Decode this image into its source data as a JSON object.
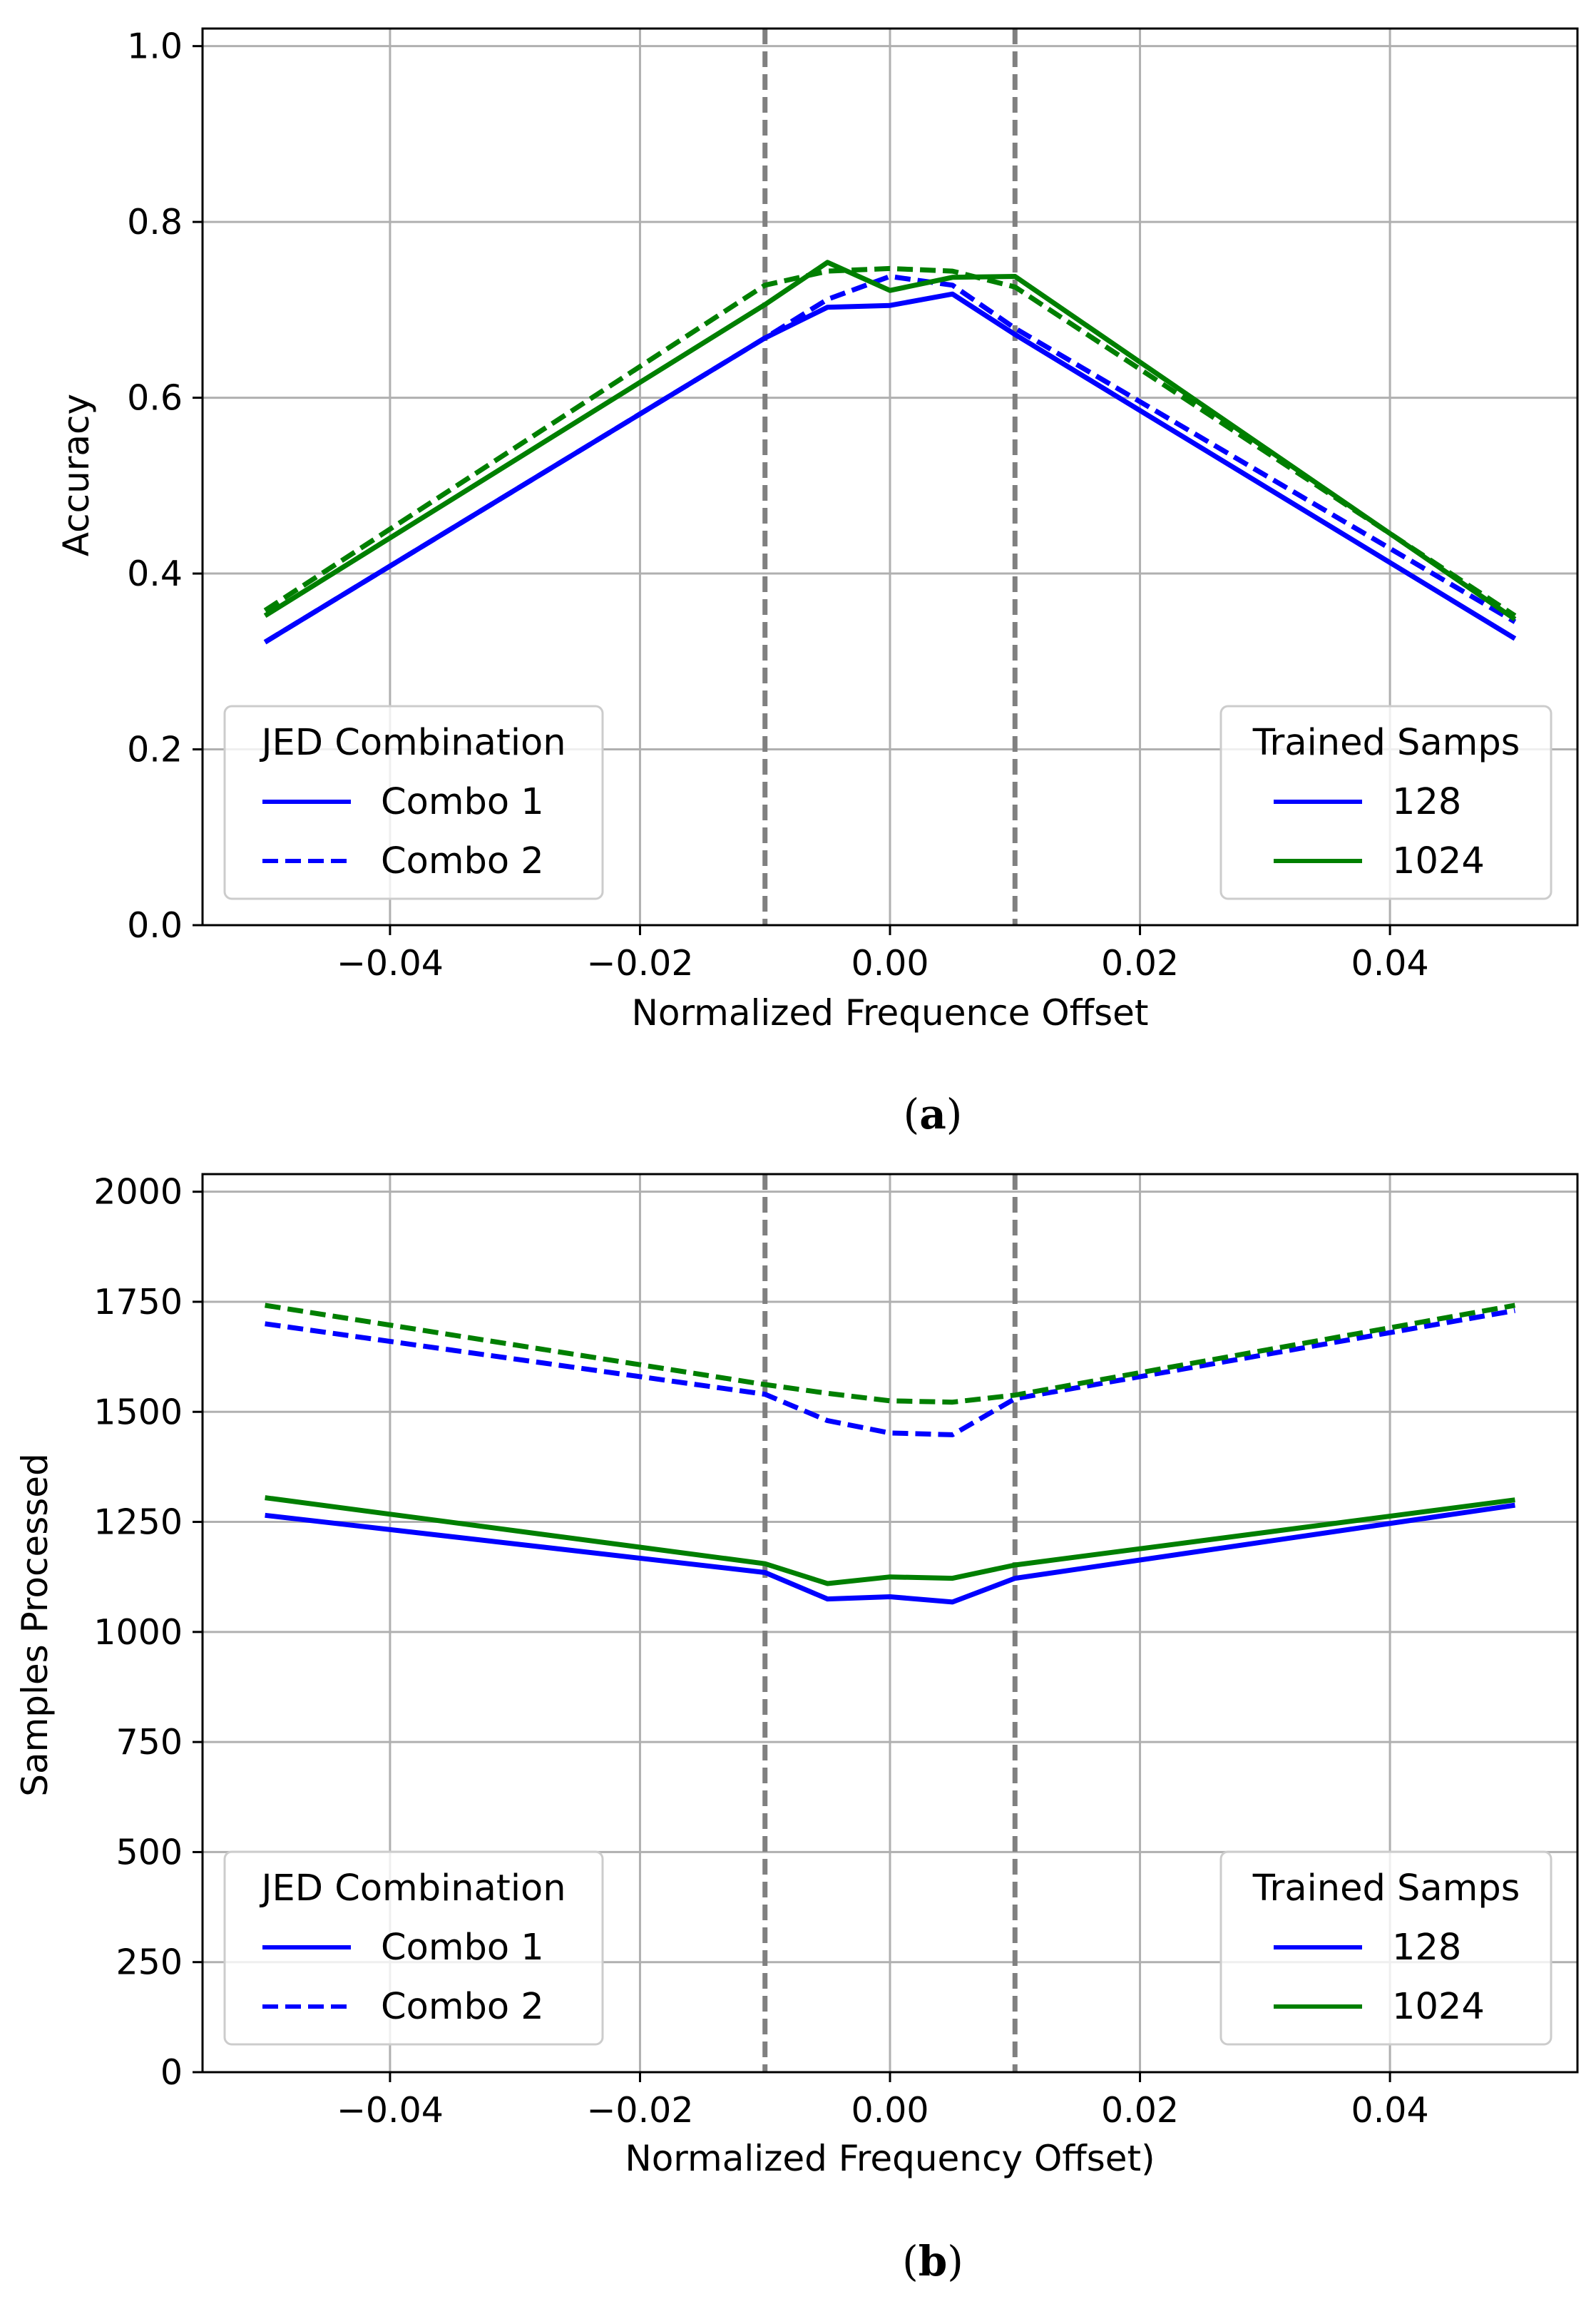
{
  "colors": {
    "combo_blue": "#0000ff",
    "trained_128": "#0000ff",
    "trained_1024": "#007f00",
    "gridline": "#b0b0b0",
    "threshold": "#808080",
    "legend_edge": "#cccccc"
  },
  "chart_data": [
    {
      "type": "line",
      "panel_label": "a",
      "xlabel": "Normalized Frequence Offset",
      "ylabel": "Accuracy",
      "xlim": [
        -0.055,
        0.055
      ],
      "ylim": [
        0.0,
        1.02
      ],
      "xticks": [
        -0.04,
        -0.02,
        0.0,
        0.02,
        0.04
      ],
      "xtick_labels": [
        "−0.04",
        "−0.02",
        "0.00",
        "0.02",
        "0.04"
      ],
      "yticks": [
        0.0,
        0.2,
        0.4,
        0.6,
        0.8,
        1.0
      ],
      "ytick_labels": [
        "0.0",
        "0.2",
        "0.4",
        "0.6",
        "0.8",
        "1.0"
      ],
      "grid": true,
      "vlines": [
        -0.01,
        0.01
      ],
      "x": [
        -0.05,
        -0.01,
        -0.005,
        0.0,
        0.005,
        0.01,
        0.05
      ],
      "series": [
        {
          "name": "Combo 1 / 128",
          "combo": "Combo 1",
          "trained": "128",
          "style": "solid",
          "values": [
            0.322,
            0.668,
            0.703,
            0.705,
            0.718,
            0.672,
            0.326
          ]
        },
        {
          "name": "Combo 2 / 128",
          "combo": "Combo 2",
          "trained": "128",
          "style": "dashed",
          "values": [
            0.322,
            0.668,
            0.712,
            0.738,
            0.728,
            0.679,
            0.345
          ]
        },
        {
          "name": "Combo 1 / 1024",
          "combo": "Combo 1",
          "trained": "1024",
          "style": "solid",
          "values": [
            0.352,
            0.706,
            0.754,
            0.722,
            0.737,
            0.738,
            0.348
          ]
        },
        {
          "name": "Combo 2 / 1024",
          "combo": "Combo 2",
          "trained": "1024",
          "style": "dashed",
          "values": [
            0.358,
            0.728,
            0.744,
            0.747,
            0.744,
            0.726,
            0.352
          ]
        }
      ],
      "legend_combo": {
        "title": "JED Combination",
        "entries": [
          "Combo 1",
          "Combo 2"
        ],
        "loc": "lower-left"
      },
      "legend_trained": {
        "title": "Trained Samps",
        "entries": [
          "128",
          "1024"
        ],
        "loc": "lower-right"
      }
    },
    {
      "type": "line",
      "panel_label": "b",
      "xlabel": "Normalized Frequency Offset)",
      "ylabel": "Samples Processed",
      "xlim": [
        -0.055,
        0.055
      ],
      "ylim": [
        0,
        2040
      ],
      "xticks": [
        -0.04,
        -0.02,
        0.0,
        0.02,
        0.04
      ],
      "xtick_labels": [
        "−0.04",
        "−0.02",
        "0.00",
        "0.02",
        "0.04"
      ],
      "yticks": [
        0,
        250,
        500,
        750,
        1000,
        1250,
        1500,
        1750,
        2000
      ],
      "ytick_labels": [
        "0",
        "250",
        "500",
        "750",
        "1000",
        "1250",
        "1500",
        "1750",
        "2000"
      ],
      "grid": true,
      "vlines": [
        -0.01,
        0.01
      ],
      "x": [
        -0.05,
        -0.01,
        -0.005,
        0.0,
        0.005,
        0.01,
        0.05
      ],
      "series": [
        {
          "name": "Combo 1 / 128",
          "combo": "Combo 1",
          "trained": "128",
          "style": "solid",
          "values": [
            1265,
            1135,
            1075,
            1080,
            1068,
            1122,
            1288
          ]
        },
        {
          "name": "Combo 2 / 128",
          "combo": "Combo 2",
          "trained": "128",
          "style": "dashed",
          "values": [
            1700,
            1540,
            1480,
            1452,
            1448,
            1530,
            1730
          ]
        },
        {
          "name": "Combo 1 / 1024",
          "combo": "Combo 1",
          "trained": "1024",
          "style": "solid",
          "values": [
            1305,
            1155,
            1110,
            1125,
            1122,
            1152,
            1300
          ]
        },
        {
          "name": "Combo 2 / 1024",
          "combo": "Combo 2",
          "trained": "1024",
          "style": "dashed",
          "values": [
            1742,
            1562,
            1542,
            1525,
            1522,
            1538,
            1742
          ]
        }
      ],
      "legend_combo": {
        "title": "JED Combination",
        "entries": [
          "Combo 1",
          "Combo 2"
        ],
        "loc": "lower-left"
      },
      "legend_trained": {
        "title": "Trained Samps",
        "entries": [
          "128",
          "1024"
        ],
        "loc": "lower-right"
      }
    }
  ],
  "captions": [
    {
      "open": "(",
      "letter": "a",
      "close": ")"
    },
    {
      "open": "(",
      "letter": "b",
      "close": ")"
    }
  ]
}
